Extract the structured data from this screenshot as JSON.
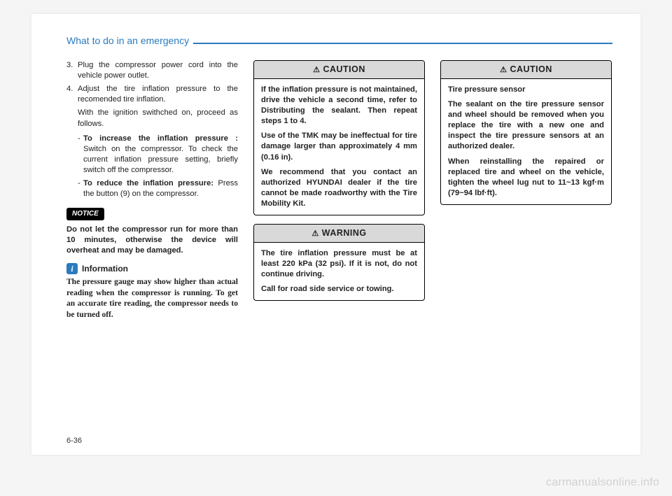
{
  "header": {
    "title": "What to do in an emergency"
  },
  "pageNumber": "6-36",
  "watermark": "carmanualsonline.info",
  "col1": {
    "item3_num": "3.",
    "item3": "Plug the compressor power cord into the vehicle power outlet.",
    "item4_num": "4.",
    "item4": "Adjust the tire inflation pressure to the recomended tire inflation.",
    "item4_sub": "With the ignition swithched on, proceed as follows.",
    "bullet1_lead": "To increase the inflation pres­sure :",
    "bullet1_rest": " Switch on the compres­sor. To check the current inflation pressure setting, briefly switch off the compressor.",
    "bullet2_lead": "To reduce the inflation pres­sure:",
    "bullet2_rest": " Press the button (9) on the compressor.",
    "notice_label": "NOTICE",
    "notice_body": "Do not let the compressor run for more than 10 minutes, otherwise the device will overheat and may be damaged.",
    "info_icon": "i",
    "info_title": "Information",
    "info_body": "The pressure gauge may show higher than actual reading when the com­pressor is running. To get an accurate tire reading, the compressor needs to be turned off."
  },
  "col2": {
    "caution_label": "CAUTION",
    "caution_p1": "If the inflation pressure is not maintained, drive the vehicle a second time, refer to Distributing the sealant. Then repeat steps 1 to 4.",
    "caution_p2": "Use of the TMK may be ineffec­tual for tire damage larger than approximately 4 mm (0.16 in).",
    "caution_p3": "We recommend that you con­tact an authorized HYUNDAI dealer if the tire cannot be made roadworthy with the Tire Mobility Kit.",
    "warning_label": "WARNING",
    "warning_p1": "The tire inflation pressure must be at least 220 kPa (32 psi). If it is not, do not continue driving.",
    "warning_p2": "Call for road side service or towing."
  },
  "col3": {
    "caution_label": "CAUTION",
    "caution_title": "Tire pressure sensor",
    "caution_p1": "The sealant on the tire pressure sensor and wheel should be removed when you replace the tire with a new one and inspect the tire pressure sensors at an authorized dealer.",
    "caution_p2": "When reinstalling the repaired or replaced tire and wheel on the vehicle, tighten the wheel lug nut to 11~13 kgf·m (79~94 lbf·ft)."
  },
  "symbols": {
    "caution_tri": "⚠",
    "warning_tri": "⚠"
  }
}
